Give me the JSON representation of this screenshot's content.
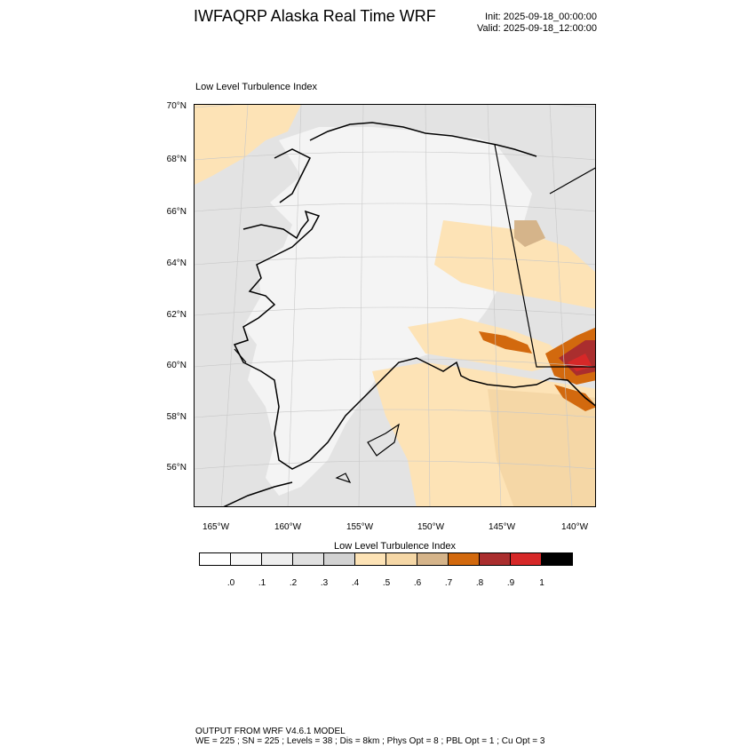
{
  "header": {
    "title": "IWFAQRP Alaska Real Time WRF",
    "init": "Init: 2025-09-18_00:00:00",
    "valid": "Valid: 2025-09-18_12:00:00"
  },
  "map": {
    "subtitle": "Low Level Turbulence Index",
    "lat_labels": [
      "70°N",
      "68°N",
      "66°N",
      "64°N",
      "62°N",
      "60°N",
      "58°N",
      "56°N"
    ],
    "lon_labels": [
      "165°W",
      "160°W",
      "155°W",
      "150°W",
      "145°W",
      "140°W"
    ]
  },
  "colorbar": {
    "title": "Low Level Turbulence Index",
    "colors": [
      "#ffffff",
      "#f7f7f7",
      "#eeeeee",
      "#e0e0e0",
      "#d2d2d2",
      "#fde3b6",
      "#f5d7a6",
      "#d5b48a",
      "#d2690e",
      "#aa2e2e",
      "#d62828",
      "#000000"
    ],
    "labels": [
      ".0",
      ".1",
      ".2",
      ".3",
      ".4",
      ".5",
      ".6",
      ".7",
      ".8",
      ".9",
      "1"
    ]
  },
  "footer": {
    "line1": "OUTPUT FROM WRF V4.6.1 MODEL",
    "line2": "WE = 225 ; SN = 225 ; Levels = 38 ; Dis = 8km ; Phys Opt = 8 ; PBL Opt = 1 ; Cu Opt = 3"
  }
}
